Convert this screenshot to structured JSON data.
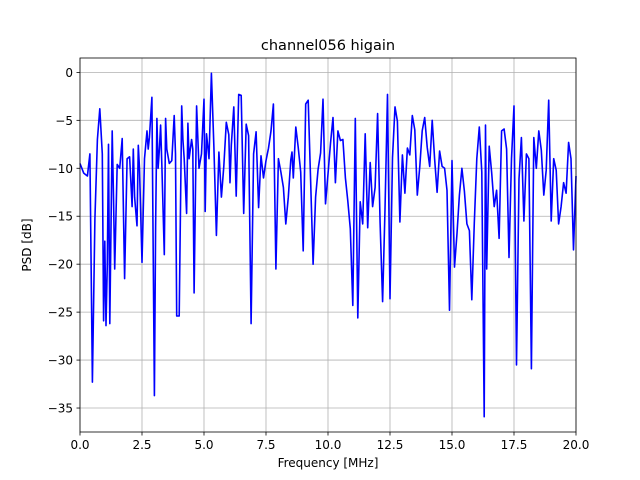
{
  "chart_data": {
    "type": "line",
    "title": "channel056 higain",
    "xlabel": "Frequency [MHz]",
    "ylabel": "PSD [dB]",
    "xlim": [
      0,
      20
    ],
    "ylim": [
      -37.5,
      1.5
    ],
    "xticks": [
      0,
      2.5,
      5,
      7.5,
      10,
      12.5,
      15,
      17.5,
      20
    ],
    "xtick_labels": [
      "0.0",
      "2.5",
      "5.0",
      "7.5",
      "10.0",
      "12.5",
      "15.0",
      "17.5",
      "20.0"
    ],
    "yticks": [
      0,
      -5,
      -10,
      -15,
      -20,
      -25,
      -30,
      -35
    ],
    "ytick_labels": [
      "0",
      "−5",
      "−10",
      "−15",
      "−20",
      "−25",
      "−30",
      "−35"
    ],
    "grid": true,
    "series": [
      {
        "color": "#0000ff",
        "x": [
          0.0,
          0.15,
          0.3,
          0.4,
          0.5,
          0.6,
          0.7,
          0.8,
          0.9,
          0.95,
          1.0,
          1.05,
          1.1,
          1.15,
          1.2,
          1.3,
          1.35,
          1.4,
          1.5,
          1.6,
          1.7,
          1.8,
          1.9,
          2.0,
          2.1,
          2.15,
          2.2,
          2.3,
          2.35,
          2.4,
          2.5,
          2.6,
          2.7,
          2.75,
          2.8,
          2.9,
          3.0,
          3.05,
          3.1,
          3.15,
          3.2,
          3.25,
          3.3,
          3.4,
          3.45,
          3.5,
          3.6,
          3.7,
          3.8,
          3.85,
          3.9,
          4.0,
          4.1,
          4.15,
          4.2,
          4.3,
          4.35,
          4.4,
          4.5,
          4.55,
          4.6,
          4.7,
          4.8,
          4.9,
          5.0,
          5.05,
          5.1,
          5.2,
          5.3,
          5.4,
          5.5,
          5.6,
          5.7,
          5.8,
          5.9,
          6.0,
          6.05,
          6.1,
          6.2,
          6.3,
          6.4,
          6.5,
          6.6,
          6.7,
          6.8,
          6.9,
          7.0,
          7.1,
          7.2,
          7.3,
          7.4,
          7.5,
          7.6,
          7.7,
          7.8,
          7.9,
          8.0,
          8.1,
          8.2,
          8.3,
          8.4,
          8.5,
          8.55,
          8.6,
          8.7,
          8.8,
          8.9,
          9.0,
          9.1,
          9.2,
          9.3,
          9.4,
          9.5,
          9.6,
          9.7,
          9.8,
          9.9,
          10.0,
          10.1,
          10.2,
          10.3,
          10.4,
          10.5,
          10.6,
          10.7,
          10.8,
          10.9,
          11.0,
          11.1,
          11.2,
          11.3,
          11.4,
          11.5,
          11.6,
          11.7,
          11.8,
          11.9,
          12.0,
          12.1,
          12.2,
          12.3,
          12.4,
          12.5,
          12.6,
          12.7,
          12.8,
          12.9,
          13.0,
          13.1,
          13.2,
          13.3,
          13.4,
          13.5,
          13.6,
          13.7,
          13.8,
          13.9,
          14.0,
          14.1,
          14.2,
          14.3,
          14.4,
          14.5,
          14.6,
          14.7,
          14.8,
          14.9,
          15.0,
          15.1,
          15.2,
          15.3,
          15.4,
          15.5,
          15.6,
          15.7,
          15.8,
          15.9,
          16.0,
          16.1,
          16.2,
          16.3,
          16.35,
          16.4,
          16.5,
          16.6,
          16.7,
          16.8,
          16.9,
          17.0,
          17.1,
          17.2,
          17.3,
          17.4,
          17.5,
          17.6,
          17.7,
          17.8,
          17.9,
          18.0,
          18.1,
          18.2,
          18.3,
          18.4,
          18.5,
          18.6,
          18.7,
          18.8,
          18.9,
          19.0,
          19.1,
          19.2,
          19.3,
          19.4,
          19.5,
          19.6,
          19.7,
          19.8,
          19.9,
          20.0
        ],
        "y": [
          -9.5,
          -10.5,
          -10.8,
          -8.5,
          -32.3,
          -15.3,
          -7.0,
          -3.8,
          -8.5,
          -25.9,
          -17.6,
          -26.4,
          -20.0,
          -7.5,
          -26.2,
          -6.1,
          -13.0,
          -20.5,
          -9.6,
          -10.0,
          -6.9,
          -21.5,
          -9.0,
          -8.8,
          -14.0,
          -8.0,
          -13.0,
          -16.0,
          -7.6,
          -10.0,
          -19.8,
          -9.0,
          -6.1,
          -8.0,
          -6.8,
          -2.6,
          -33.7,
          -16.2,
          -4.8,
          -10.0,
          -8.0,
          -5.5,
          -9.5,
          -19.0,
          -4.8,
          -8.0,
          -9.5,
          -9.2,
          -4.5,
          -8.5,
          -25.4,
          -25.4,
          -3.5,
          -7.0,
          -9.0,
          -14.7,
          -5.3,
          -9.0,
          -7.0,
          -8.0,
          -23.0,
          -3.5,
          -10.0,
          -8.5,
          -2.8,
          -14.5,
          -6.4,
          -9.0,
          -0.1,
          -7.8,
          -17.0,
          -8.3,
          -13.0,
          -9.8,
          -5.2,
          -6.5,
          -11.5,
          -7.6,
          -3.6,
          -12.9,
          -2.3,
          -2.4,
          -14.7,
          -5.4,
          -6.6,
          -26.2,
          -8.5,
          -6.2,
          -14.1,
          -8.7,
          -11.0,
          -9.2,
          -7.9,
          -6.1,
          -3.3,
          -20.5,
          -9.0,
          -10.4,
          -12.0,
          -15.8,
          -13.0,
          -9.1,
          -8.3,
          -11.0,
          -5.7,
          -7.8,
          -10.4,
          -18.6,
          -3.3,
          -2.9,
          -11.2,
          -20.0,
          -13.0,
          -10.1,
          -8.4,
          -2.8,
          -13.7,
          -10.6,
          -7.4,
          -4.7,
          -11.5,
          -6.1,
          -7.1,
          -7.0,
          -11.0,
          -13.4,
          -16.3,
          -24.3,
          -4.8,
          -25.6,
          -13.5,
          -15.8,
          -6.4,
          -16.2,
          -9.4,
          -14.0,
          -12.0,
          -4.3,
          -15.7,
          -23.9,
          -14.3,
          -2.3,
          -23.6,
          -8.9,
          -3.6,
          -5.1,
          -15.6,
          -8.6,
          -12.6,
          -7.9,
          -8.6,
          -4.5,
          -6.0,
          -12.8,
          -9.8,
          -6.1,
          -4.7,
          -7.8,
          -9.8,
          -5.0,
          -9.0,
          -12.5,
          -8.2,
          -9.8,
          -10.0,
          -12.3,
          -24.8,
          -9.2,
          -20.3,
          -16.8,
          -12.8,
          -10.0,
          -12.4,
          -15.8,
          -16.5,
          -23.7,
          -15.7,
          -9.0,
          -5.7,
          -10.4,
          -35.9,
          -5.5,
          -20.5,
          -7.7,
          -10.5,
          -14.0,
          -12.3,
          -17.3,
          -6.1,
          -5.9,
          -8.0,
          -19.3,
          -9.0,
          -3.5,
          -30.5,
          -11.1,
          -6.8,
          -15.5,
          -8.5,
          -9.0,
          -30.9,
          -6.8,
          -10.0,
          -6.1,
          -8.1,
          -12.8,
          -10.2,
          -2.9,
          -15.5,
          -9.0,
          -10.2,
          -15.8,
          -14.0,
          -11.5,
          -12.6,
          -7.3,
          -9.0,
          -18.5,
          -10.8
        ]
      }
    ]
  }
}
